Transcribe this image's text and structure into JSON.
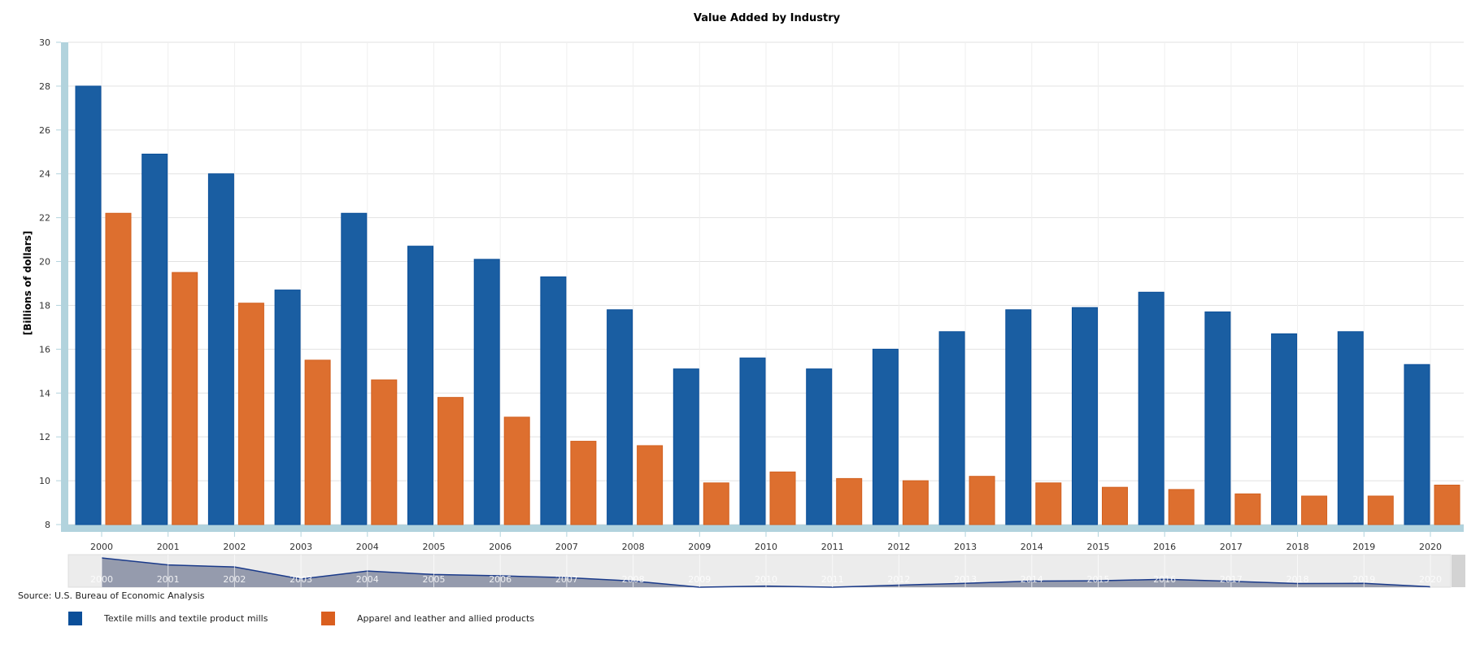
{
  "chart_data": {
    "type": "bar",
    "title": "Value Added by Industry",
    "xlabel": "",
    "ylabel": "[Billions of dollars]",
    "ylim": [
      8,
      30
    ],
    "yticks": [
      8,
      10,
      12,
      14,
      16,
      18,
      20,
      22,
      24,
      26,
      28,
      30
    ],
    "grid": true,
    "legend_placement": "bottom-left",
    "categories": [
      "2000",
      "2001",
      "2002",
      "2003",
      "2004",
      "2005",
      "2006",
      "2007",
      "2008",
      "2009",
      "2010",
      "2011",
      "2012",
      "2013",
      "2014",
      "2015",
      "2016",
      "2017",
      "2018",
      "2019",
      "2020"
    ],
    "series": [
      {
        "name": "Textile mills and textile product mills",
        "color": "#1a5ea2",
        "values": [
          28.0,
          24.9,
          24.0,
          18.7,
          22.2,
          20.7,
          20.1,
          19.3,
          17.8,
          15.1,
          15.6,
          15.1,
          16.0,
          16.8,
          17.8,
          17.9,
          18.6,
          17.7,
          16.7,
          16.8,
          15.3
        ]
      },
      {
        "name": "Apparel and leather and allied products",
        "color": "#dd6f2f",
        "values": [
          22.2,
          19.5,
          18.1,
          15.5,
          14.6,
          13.8,
          12.9,
          11.8,
          11.6,
          9.9,
          10.4,
          10.1,
          10.0,
          10.2,
          9.9,
          9.7,
          9.6,
          9.4,
          9.3,
          9.3,
          9.8
        ]
      }
    ],
    "source": "Source: U.S. Bureau of Economic Analysis"
  },
  "colors": {
    "axis_band": "#b2d3dd",
    "navigator_fill": "#959bad",
    "navigator_line": "#1a3a8a",
    "navigator_bg": "#ececec"
  }
}
